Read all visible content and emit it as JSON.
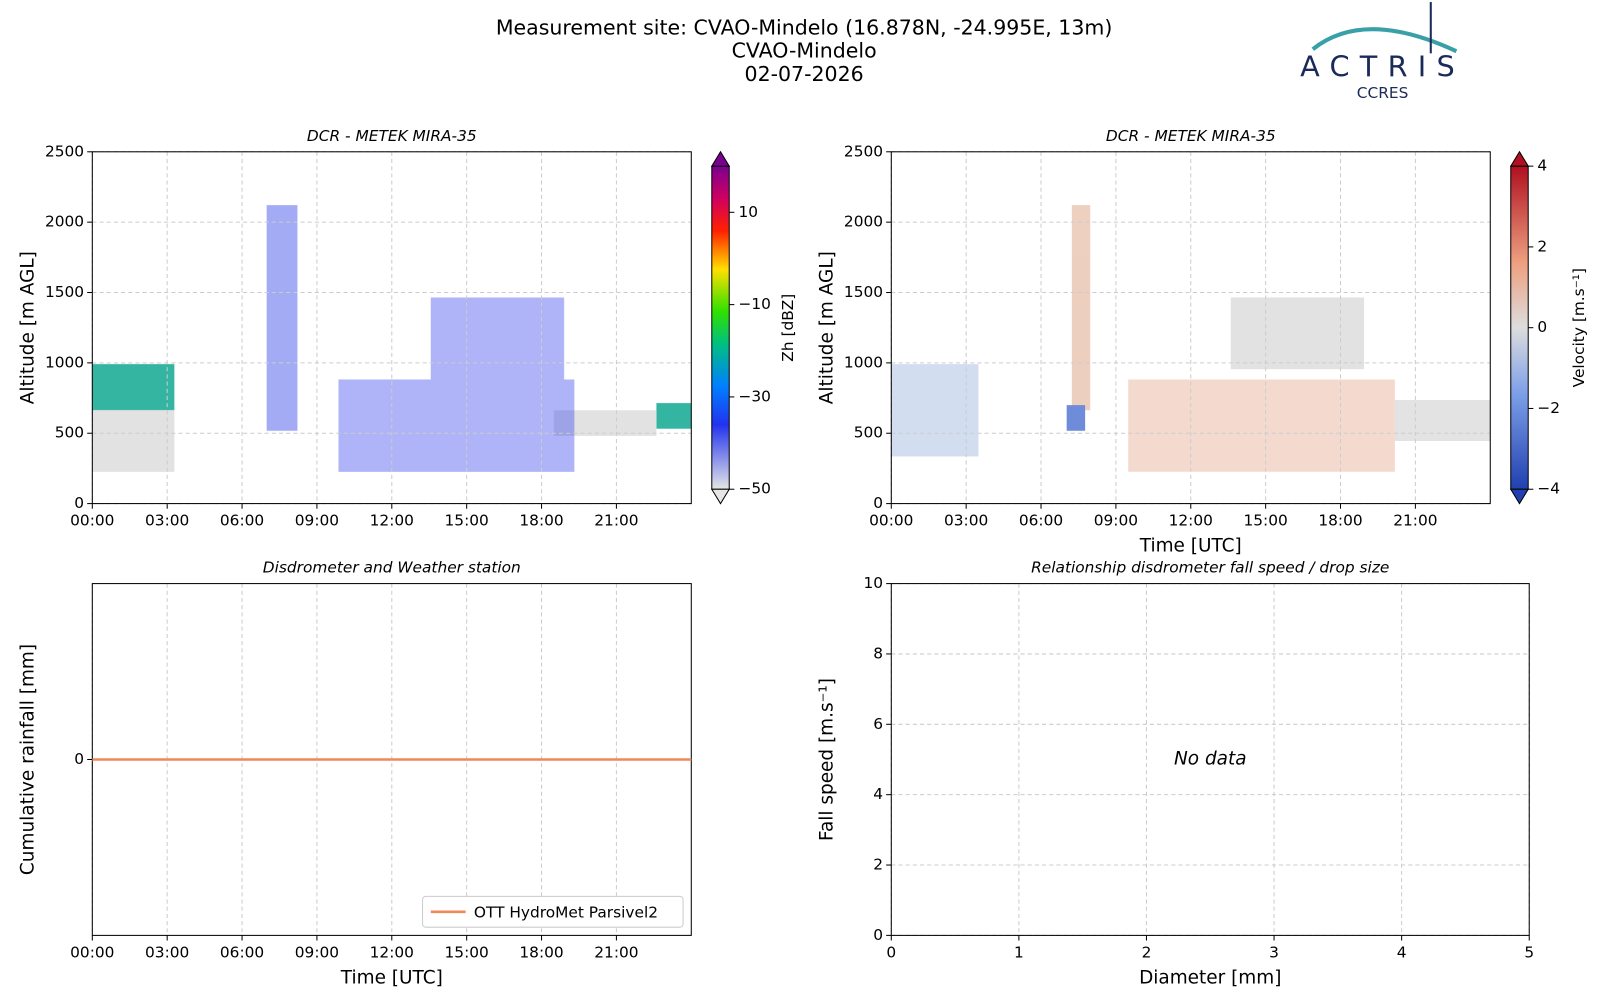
{
  "header": {
    "title": [
      "Measurement site: CVAO-Mindelo (16.878N, -24.995E, 13m)",
      "CVAO-Mindelo",
      "02-07-2026"
    ],
    "logo": {
      "name": "ACTRIS",
      "sub": "CCRES"
    }
  },
  "chart_data": [
    {
      "type": "heatmap",
      "title": "DCR - METEK MIRA-35",
      "ylabel": "Altitude [m AGL]",
      "xlim": [
        0,
        24
      ],
      "xticks": [
        {
          "value": 0,
          "label": "00:00"
        },
        {
          "value": 3,
          "label": "03:00"
        },
        {
          "value": 6,
          "label": "06:00"
        },
        {
          "value": 9,
          "label": "09:00"
        },
        {
          "value": 12,
          "label": "12:00"
        },
        {
          "value": 15,
          "label": "15:00"
        },
        {
          "value": 18,
          "label": "18:00"
        },
        {
          "value": 21,
          "label": "21:00"
        }
      ],
      "ylim": [
        0,
        2500
      ],
      "yticks": [
        0,
        500,
        1000,
        1500,
        2000,
        2500
      ],
      "grid": true,
      "colorbar": {
        "label": "Zh [dBZ]",
        "lim": [
          -50,
          20
        ],
        "ticks": [
          {
            "value": -50,
            "label": "−50"
          },
          {
            "value": -30,
            "label": "−30"
          },
          {
            "value": -10,
            "label": "−10"
          },
          10
        ]
      }
    },
    {
      "type": "heatmap",
      "title": "DCR - METEK MIRA-35",
      "ylabel": "Altitude [m AGL]",
      "xlabel": "Time [UTC]",
      "xlim": [
        0,
        24
      ],
      "xticks": [
        {
          "value": 0,
          "label": "00:00"
        },
        {
          "value": 3,
          "label": "03:00"
        },
        {
          "value": 6,
          "label": "06:00"
        },
        {
          "value": 9,
          "label": "09:00"
        },
        {
          "value": 12,
          "label": "12:00"
        },
        {
          "value": 15,
          "label": "15:00"
        },
        {
          "value": 18,
          "label": "18:00"
        },
        {
          "value": 21,
          "label": "21:00"
        }
      ],
      "ylim": [
        0,
        2500
      ],
      "yticks": [
        0,
        500,
        1000,
        1500,
        2000,
        2500
      ],
      "grid": true,
      "colorbar": {
        "label": "Velocity [m.s⁻¹]",
        "lim": [
          -4,
          4
        ],
        "ticks": [
          {
            "value": -4,
            "label": "−4"
          },
          {
            "value": -2,
            "label": "−2"
          },
          0,
          2,
          4
        ]
      }
    },
    {
      "type": "line",
      "title": "Disdrometer and Weather station",
      "xlabel": "Time [UTC]",
      "ylabel": "Cumulative rainfall [mm]",
      "x": [
        0,
        24
      ],
      "series": [
        {
          "name": "OTT HydroMet Parsivel2",
          "color": "#f0895a",
          "values": [
            0,
            0
          ]
        }
      ],
      "xlim": [
        0,
        24
      ],
      "xticks": [
        {
          "value": 0,
          "label": "00:00"
        },
        {
          "value": 3,
          "label": "03:00"
        },
        {
          "value": 6,
          "label": "06:00"
        },
        {
          "value": 9,
          "label": "09:00"
        },
        {
          "value": 12,
          "label": "12:00"
        },
        {
          "value": 15,
          "label": "15:00"
        },
        {
          "value": 18,
          "label": "18:00"
        },
        {
          "value": 21,
          "label": "21:00"
        }
      ],
      "ylim": [
        -0.055,
        0.055
      ],
      "yticks": [
        0
      ],
      "grid": true,
      "legend": "lower right"
    },
    {
      "type": "scatter",
      "title": "Relationship disdrometer fall speed / drop size",
      "xlabel": "Diameter [mm]",
      "ylabel": "Fall speed [m.s⁻¹]",
      "annotation": "No data",
      "xlim": [
        0,
        5
      ],
      "xticks": [
        0,
        1,
        2,
        3,
        4,
        5
      ],
      "ylim": [
        0,
        10
      ],
      "yticks": [
        0,
        2,
        4,
        6,
        8,
        10
      ],
      "grid": true
    }
  ]
}
